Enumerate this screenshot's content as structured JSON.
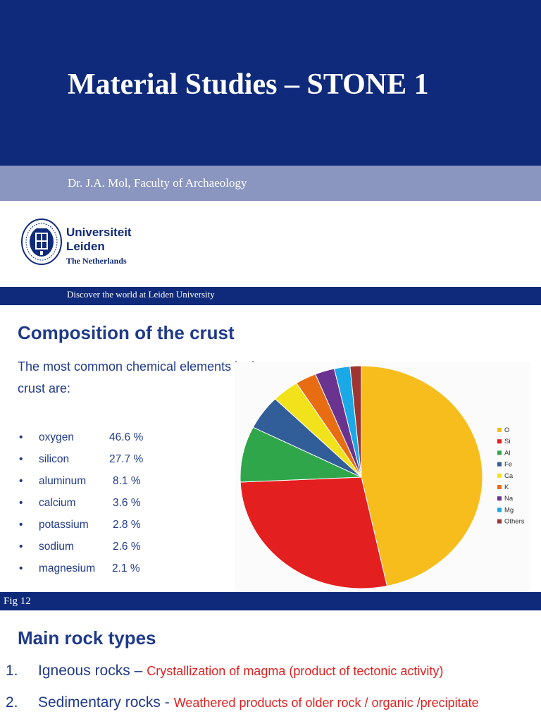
{
  "slide1": {
    "title": "Material Studies – STONE 1",
    "author": "Dr. J.A. Mol, Faculty of Archaeology",
    "logo": {
      "line1": "Universiteit",
      "line2": "Leiden",
      "line3": "The Netherlands"
    },
    "tagline": "Discover the world at Leiden University"
  },
  "slide2": {
    "title": "Composition of the crust",
    "intro": "The most common chemical elements in the crust are:",
    "elements": [
      {
        "name": "oxygen",
        "pct": "46.6 %"
      },
      {
        "name": "silicon",
        "pct": "27.7 %"
      },
      {
        "name": "aluminum",
        "pct": "8.1 %"
      },
      {
        "name": "calcium",
        "pct": "3.6 %"
      },
      {
        "name": "potassium",
        "pct": "2.8 %"
      },
      {
        "name": "sodium",
        "pct": "2.6 %"
      },
      {
        "name": "magnesium",
        "pct": "2.1 %"
      }
    ],
    "figure_label": "Fig 12"
  },
  "slide3": {
    "title": "Main rock types",
    "items": [
      {
        "num": "1.",
        "name": "Igneous rocks –",
        "desc": "Crystallization of magma (product of tectonic activity)"
      },
      {
        "num": "2.",
        "name": "Sedimentary rocks -",
        "desc": "Weathered products of older rock / organic /precipitate"
      }
    ]
  },
  "chart_data": {
    "type": "pie",
    "title": "",
    "legend_position": "right",
    "labels": [
      "O",
      "Si",
      "Al",
      "Fe",
      "Ca",
      "K",
      "Na",
      "Mg",
      "Others"
    ],
    "values": [
      46.6,
      27.7,
      8.1,
      5.0,
      3.6,
      2.8,
      2.6,
      2.1,
      1.5
    ],
    "colors": [
      "#f7bd1d",
      "#e41f1f",
      "#2fa64a",
      "#315d99",
      "#f2e21b",
      "#e86d12",
      "#6b3390",
      "#1aa9e6",
      "#9e3530"
    ]
  },
  "colors": {
    "navy": "#0f2a7a",
    "light_band": "#8a96c0",
    "heading": "#1f3a8a",
    "red_text": "#e02020"
  }
}
